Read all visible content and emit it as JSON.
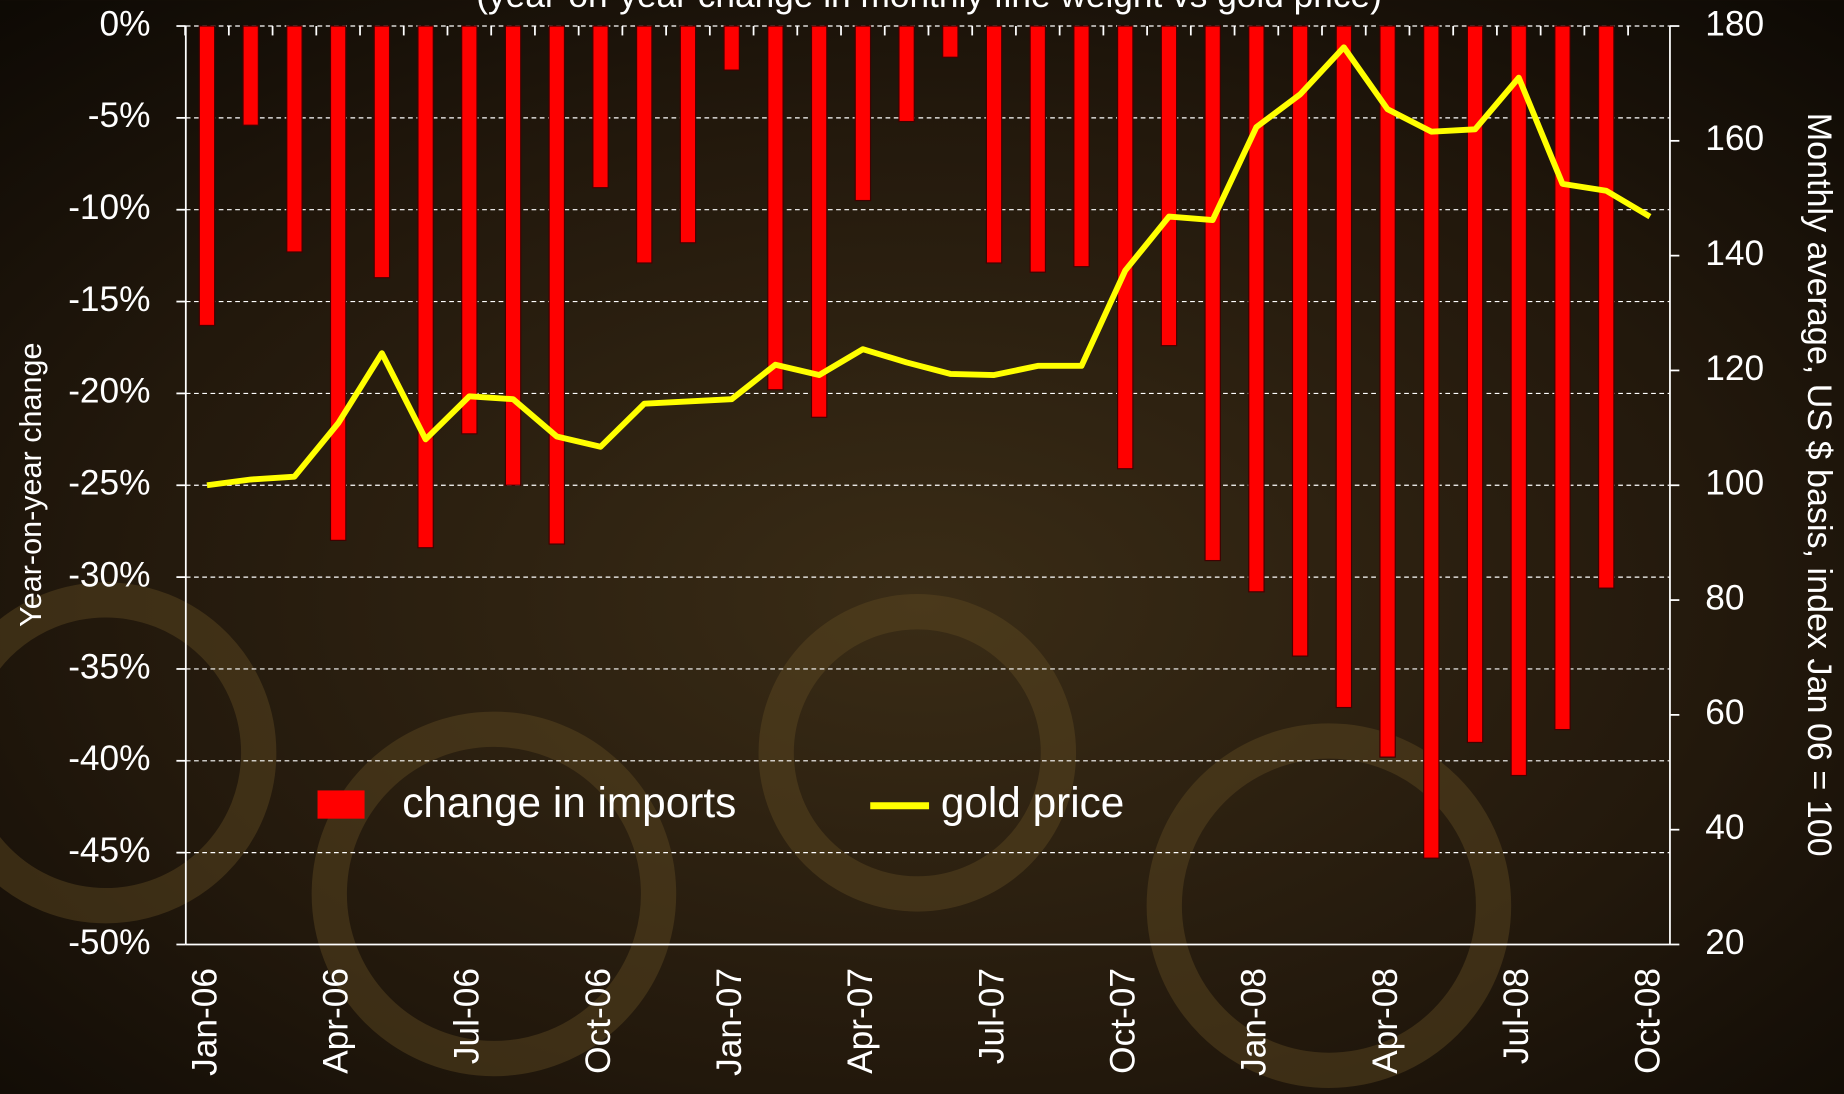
{
  "chart_data": {
    "type": "bar-line",
    "subtitle": "(year-on-year change in monthly fine weight vs gold price)",
    "y_label": "Year-on-year change",
    "y2_label": "Monthly average, US $ basis, index Jan 06 = 100",
    "categories": [
      "Jan-06",
      null,
      null,
      "Apr-06",
      null,
      null,
      "Jul-06",
      null,
      null,
      "Oct-06",
      null,
      null,
      "Jan-07",
      null,
      null,
      "Apr-07",
      null,
      null,
      "Jul-07",
      null,
      null,
      "Oct-07",
      null,
      null,
      "Jan-08",
      null,
      null,
      "Apr-08",
      null,
      null,
      "Jul-08",
      null,
      null,
      "Oct-08"
    ],
    "series": [
      {
        "name": "change in imports",
        "type": "bar",
        "color": "#ff0000",
        "values": [
          -16.3,
          -5.4,
          -12.3,
          -28.0,
          -13.7,
          -28.4,
          -22.2,
          -25.0,
          -28.2,
          -8.8,
          -12.9,
          -11.8,
          -2.4,
          -19.8,
          -21.3,
          -9.5,
          -5.2,
          -1.7,
          -12.9,
          -13.4,
          -13.1,
          -24.1,
          -17.4,
          -29.1,
          -30.8,
          -34.3,
          -37.1,
          -39.8,
          -45.3,
          -39.0,
          -40.8,
          -38.3,
          -30.6,
          null
        ]
      },
      {
        "name": "gold price",
        "type": "line",
        "axis": "y2",
        "color": "#ffff00",
        "values": [
          100,
          101,
          101.5,
          110.8,
          123,
          108,
          115.5,
          115,
          108.5,
          106.7,
          114.2,
          114.6,
          115,
          121,
          119.2,
          123.7,
          121.4,
          119.4,
          119.2,
          120.8,
          120.8,
          137.4,
          146.8,
          146.2,
          162.4,
          168.1,
          176.3,
          165.5,
          161.6,
          162,
          171,
          152.5,
          151.3,
          146.8
        ]
      }
    ],
    "ylim": [
      -50,
      0
    ],
    "yticks": [
      {
        "value": 0,
        "label": "0%"
      },
      {
        "value": -5,
        "label": "-5%"
      },
      {
        "value": -10,
        "label": "-10%"
      },
      {
        "value": -15,
        "label": "-15%"
      },
      {
        "value": -20,
        "label": "-20%"
      },
      {
        "value": -25,
        "label": "-25%"
      },
      {
        "value": -30,
        "label": "-30%"
      },
      {
        "value": -35,
        "label": "-35%"
      },
      {
        "value": -40,
        "label": "-40%"
      },
      {
        "value": -45,
        "label": "-45%"
      },
      {
        "value": -50,
        "label": "-50%"
      }
    ],
    "y2lim": [
      20,
      180
    ],
    "y2ticks": [
      20,
      40,
      60,
      80,
      100,
      120,
      140,
      160,
      180
    ],
    "grid": true
  }
}
